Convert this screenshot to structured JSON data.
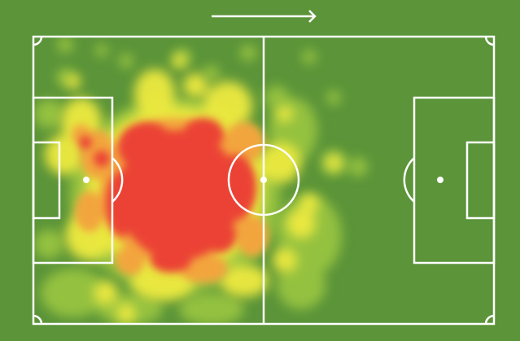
{
  "view": {
    "type": "player-heatmap",
    "attack_direction": "right",
    "icons": [
      "attack-direction-arrow-icon"
    ]
  },
  "colors": {
    "pitch": "#5b9439",
    "lines": "#ffffff",
    "low": "#9ccb3c",
    "medium": "#f3ee3e",
    "high": "#f2a33a",
    "peak": "#ea4335"
  }
}
